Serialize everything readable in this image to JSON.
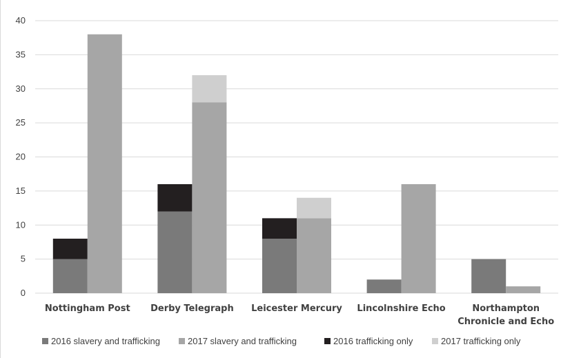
{
  "chart_data": {
    "type": "bar",
    "stacked_groups": true,
    "title": "",
    "xlabel": "",
    "ylabel": "",
    "ylim": [
      0,
      40
    ],
    "yticks": [
      0,
      5,
      10,
      15,
      20,
      25,
      30,
      35,
      40
    ],
    "grid": true,
    "legend_position": "bottom",
    "categories": [
      [
        "Nottingham Post"
      ],
      [
        "Derby Telegraph"
      ],
      [
        "Leicester Mercury"
      ],
      [
        "Lincolnshire Echo"
      ],
      [
        "Northampton",
        "Chronicle and Echo"
      ]
    ],
    "groups": [
      "2016",
      "2017"
    ],
    "series": [
      {
        "name": "2016 slavery and trafficking",
        "year": "2016",
        "color": "#7a7a7a",
        "values": [
          5,
          12,
          8,
          2,
          5
        ]
      },
      {
        "name": "2017 slavery and trafficking",
        "year": "2017",
        "color": "#a6a6a6",
        "values": [
          38,
          28,
          11,
          16,
          1
        ]
      },
      {
        "name": "2016 trafficking only",
        "year": "2016",
        "color": "#231f20",
        "values": [
          3,
          4,
          3,
          0,
          0
        ]
      },
      {
        "name": "2017 trafficking only",
        "year": "2017",
        "color": "#cfcfcf",
        "values": [
          0,
          4,
          3,
          0,
          0
        ]
      }
    ]
  }
}
